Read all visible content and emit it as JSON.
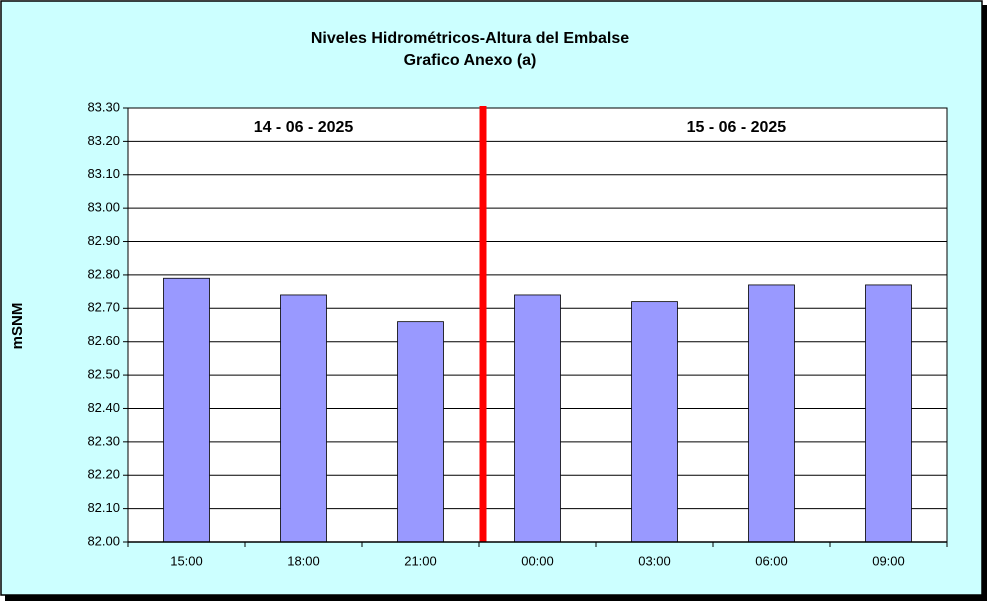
{
  "chart_data": {
    "type": "bar",
    "title": "Niveles Hidrométricos-Altura del Embalse",
    "subtitle": "Grafico Anexo (a)",
    "y_label": "mSNM",
    "annotations": [
      "14 - 06 - 2025",
      "15 - 06 - 2025"
    ],
    "categories": [
      "15:00",
      "18:00",
      "21:00",
      "00:00",
      "03:00",
      "06:00",
      "09:00"
    ],
    "values": [
      82.79,
      82.74,
      82.66,
      82.74,
      82.72,
      82.77,
      82.77
    ],
    "color": "#9999ff",
    "ylim": [
      82.0,
      83.3
    ],
    "yticks": [
      {
        "value": 82.0,
        "label": "82.00"
      },
      {
        "value": 82.1,
        "label": "82.10"
      },
      {
        "value": 82.2,
        "label": "82.20"
      },
      {
        "value": 82.3,
        "label": "82.30"
      },
      {
        "value": 82.4,
        "label": "82.40"
      },
      {
        "value": 82.5,
        "label": "82.50"
      },
      {
        "value": 82.6,
        "label": "82.60"
      },
      {
        "value": 82.7,
        "label": "82.70"
      },
      {
        "value": 82.8,
        "label": "82.80"
      },
      {
        "value": 82.9,
        "label": "82.90"
      },
      {
        "value": 83.0,
        "label": "83.00"
      },
      {
        "value": 83.1,
        "label": "83.10"
      },
      {
        "value": 83.2,
        "label": "83.20"
      },
      {
        "value": 83.3,
        "label": "83.30"
      }
    ],
    "grid": true
  }
}
